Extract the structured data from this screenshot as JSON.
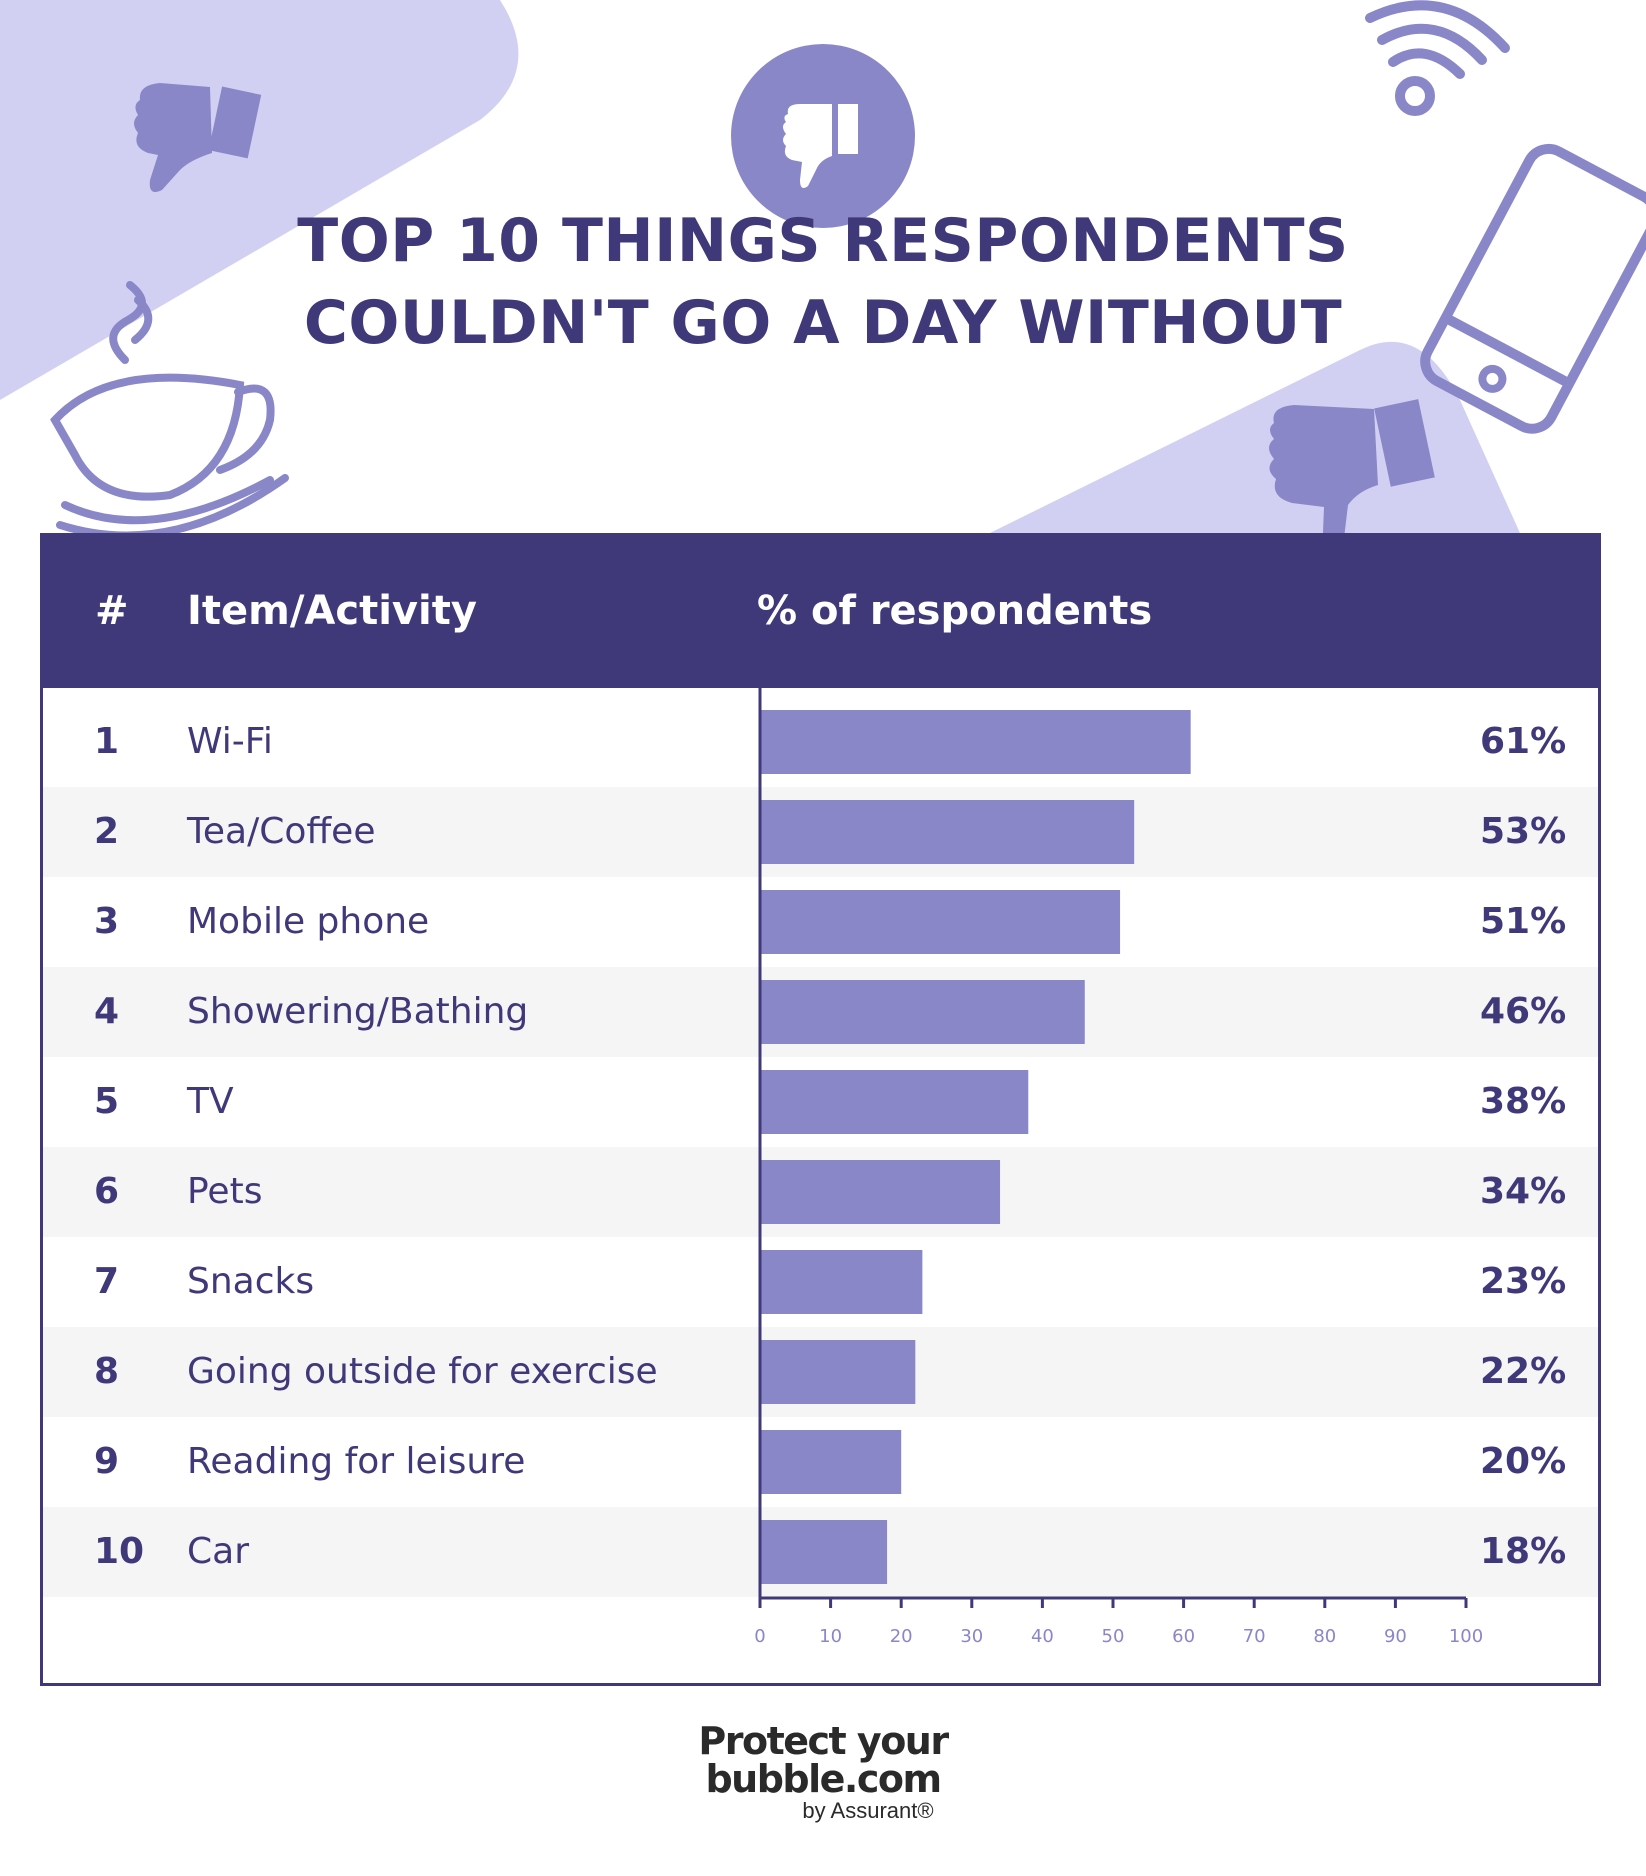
{
  "title_lines": [
    "TOP 10 THINGS RESPONDENTS",
    "COULDN'T GO A DAY WITHOUT"
  ],
  "table": {
    "col_rank": "#",
    "col_item": "Item/Activity",
    "col_percent": "% of respondents"
  },
  "chart_data": {
    "type": "bar",
    "orientation": "horizontal",
    "ranks": [
      "1",
      "2",
      "3",
      "4",
      "5",
      "6",
      "7",
      "8",
      "9",
      "10"
    ],
    "categories": [
      "Wi-Fi",
      "Tea/Coffee",
      "Mobile phone",
      "Showering/Bathing",
      "TV",
      "Pets",
      "Snacks",
      "Going outside for exercise",
      "Reading for leisure",
      "Car"
    ],
    "values": [
      61,
      53,
      51,
      46,
      38,
      34,
      23,
      22,
      20,
      18
    ],
    "value_labels": [
      "61%",
      "53%",
      "51%",
      "46%",
      "38%",
      "34%",
      "23%",
      "22%",
      "20%",
      "18%"
    ],
    "x_ticks": [
      "0",
      "10",
      "20",
      "30",
      "40",
      "50",
      "60",
      "70",
      "80",
      "90",
      "100"
    ],
    "xlim": [
      0,
      100
    ],
    "grid": false
  },
  "footer": {
    "logo_line1": "Protect your",
    "logo_line2": "bubble.com",
    "logo_line3": "by Assurant®"
  },
  "colors": {
    "primary": "#3f3979",
    "bar": "#8987c8",
    "light_shape": "#d1d0f2",
    "icon": "#8987c8",
    "row_band": "#f5f5f5"
  },
  "icons": [
    "thumbs-down-icon",
    "wifi-icon",
    "coffee-cup-icon",
    "mobile-phone-icon"
  ]
}
